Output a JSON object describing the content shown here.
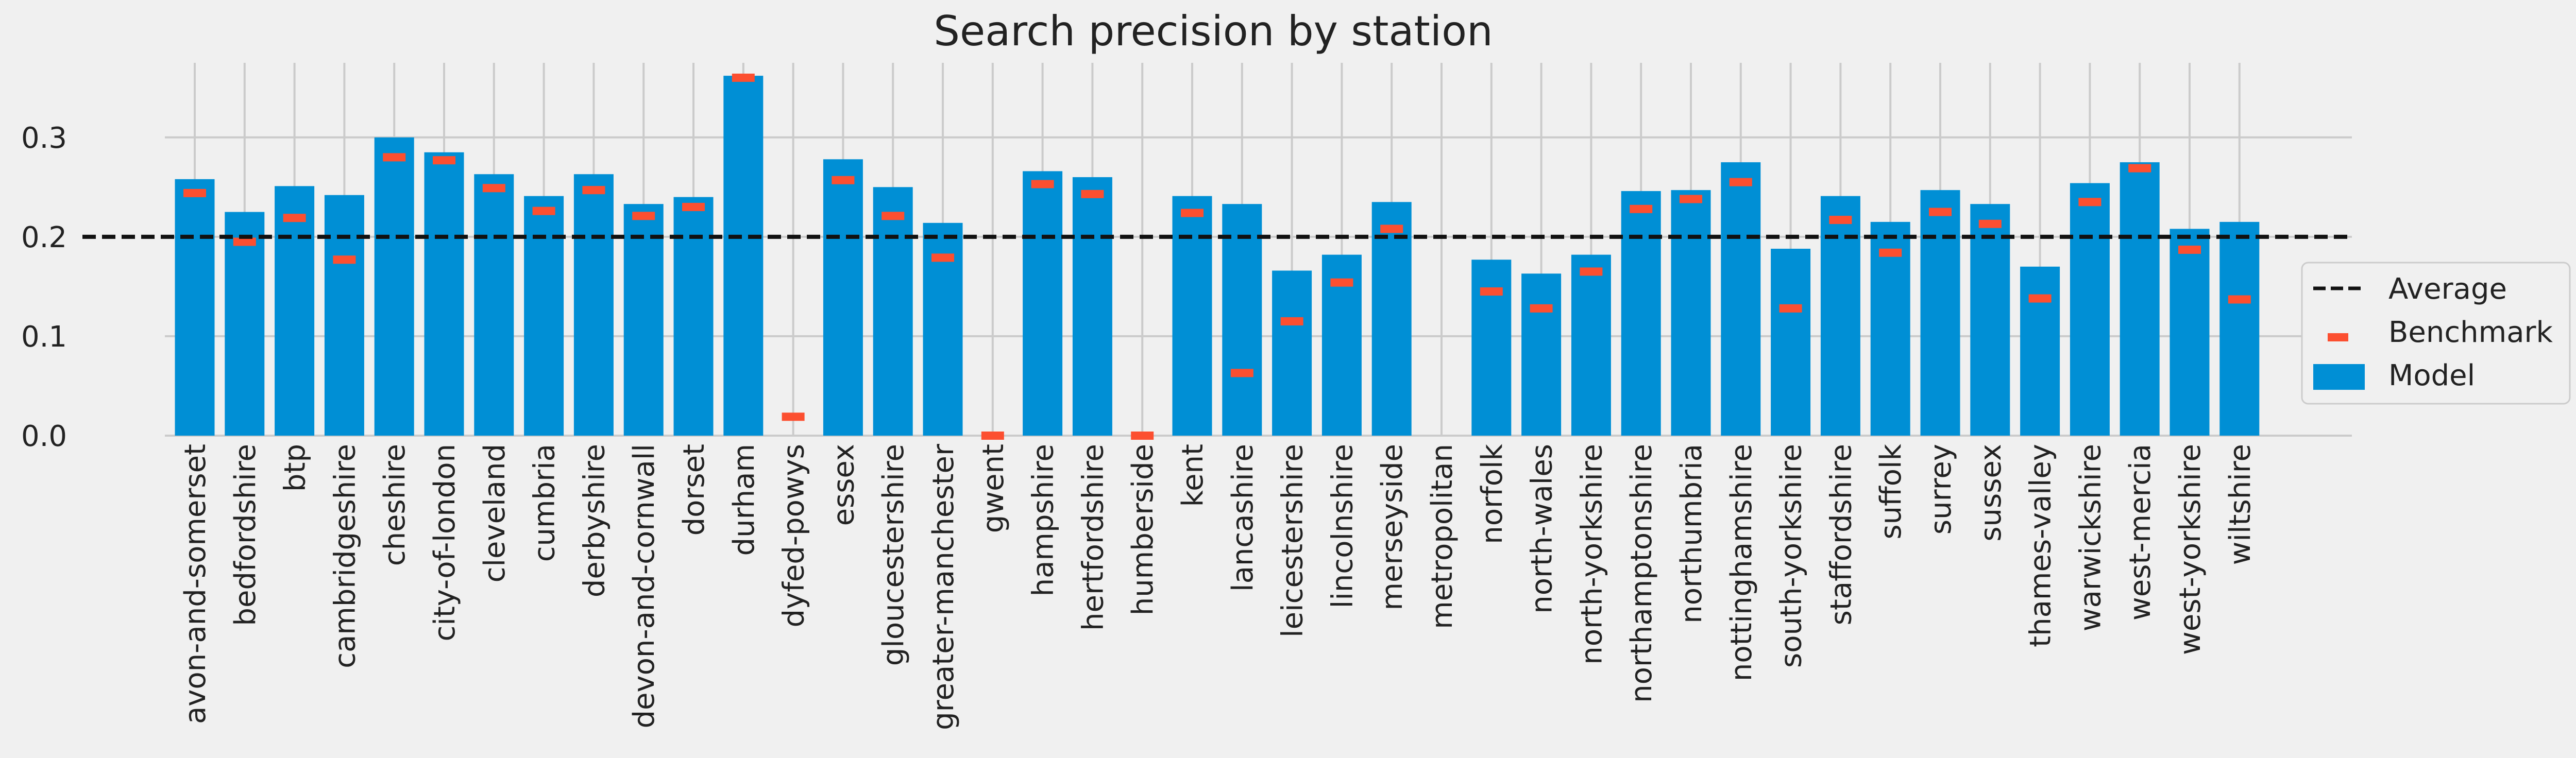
{
  "chart_data": {
    "type": "bar",
    "title": "Search precision by station",
    "xlabel": "",
    "ylabel": "",
    "ylim": [
      0,
      0.375
    ],
    "yticks": [
      "0.0",
      "0.1",
      "0.2",
      "0.3"
    ],
    "grid": true,
    "legend_position": "center-right",
    "categories": [
      "avon-and-somerset",
      "bedfordshire",
      "btp",
      "cambridgeshire",
      "cheshire",
      "city-of-london",
      "cleveland",
      "cumbria",
      "derbyshire",
      "devon-and-cornwall",
      "dorset",
      "durham",
      "dyfed-powys",
      "essex",
      "gloucestershire",
      "greater-manchester",
      "gwent",
      "hampshire",
      "hertfordshire",
      "humberside",
      "kent",
      "lancashire",
      "leicestershire",
      "lincolnshire",
      "merseyside",
      "metropolitan",
      "norfolk",
      "north-wales",
      "north-yorkshire",
      "northamptonshire",
      "northumbria",
      "nottinghamshire",
      "south-yorkshire",
      "staffordshire",
      "suffolk",
      "surrey",
      "sussex",
      "thames-valley",
      "warwickshire",
      "west-mercia",
      "west-yorkshire",
      "wiltshire"
    ],
    "series": [
      {
        "name": "Model",
        "type": "bar",
        "color": "#008fd5",
        "values": [
          0.258,
          0.225,
          0.251,
          0.242,
          0.3,
          0.285,
          0.263,
          0.241,
          0.263,
          0.233,
          0.24,
          0.362,
          null,
          0.278,
          0.25,
          0.214,
          null,
          0.266,
          0.26,
          null,
          0.241,
          0.233,
          0.166,
          0.182,
          0.235,
          null,
          0.177,
          0.163,
          0.182,
          0.246,
          0.247,
          0.275,
          0.188,
          0.241,
          0.215,
          0.247,
          0.233,
          0.17,
          0.254,
          0.275,
          0.208,
          0.215
        ]
      },
      {
        "name": "Benchmark",
        "type": "marker",
        "color": "#fc4f30",
        "values": [
          0.244,
          0.195,
          0.219,
          0.177,
          0.28,
          0.277,
          0.249,
          0.226,
          0.247,
          0.221,
          0.23,
          0.36,
          0.019,
          0.257,
          0.221,
          0.179,
          0.0,
          0.253,
          0.243,
          0.0,
          0.224,
          0.063,
          0.115,
          0.154,
          0.208,
          null,
          0.145,
          0.128,
          0.165,
          0.228,
          0.238,
          0.255,
          0.128,
          0.217,
          0.184,
          0.225,
          0.213,
          0.138,
          0.235,
          0.269,
          0.187,
          0.137
        ]
      },
      {
        "name": "Average",
        "type": "hline",
        "color": "#111111",
        "value": 0.2
      }
    ]
  }
}
